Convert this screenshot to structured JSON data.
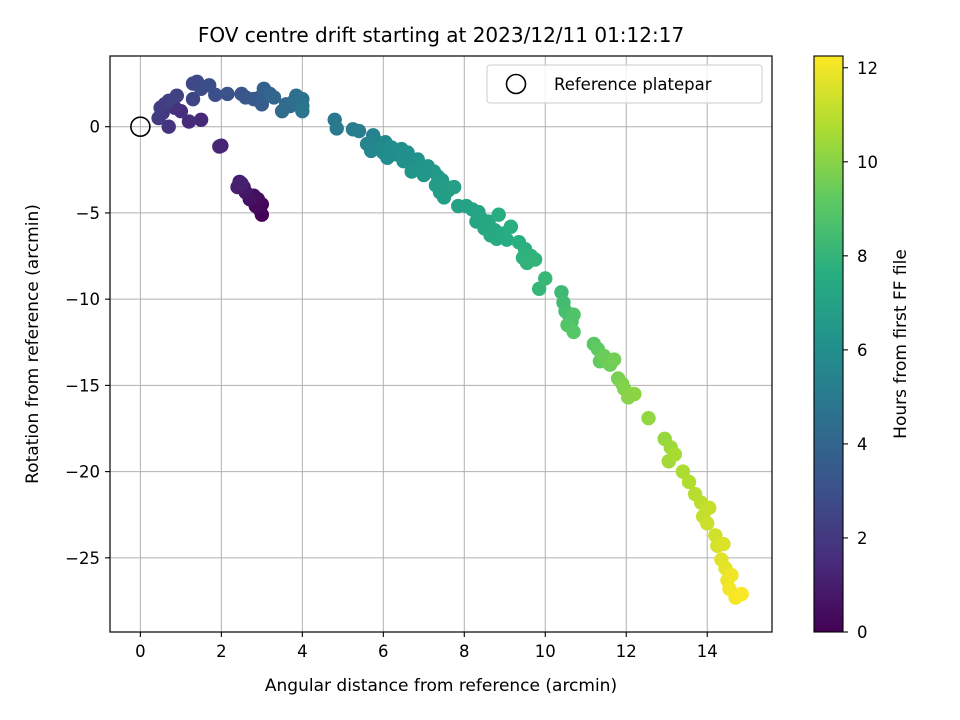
{
  "chart_data": {
    "type": "scatter",
    "title": "FOV centre drift starting at 2023/12/11 01:12:17",
    "xlabel": "Angular distance from reference (arcmin)",
    "ylabel": "Rotation from reference (arcmin)",
    "xlim": [
      -0.75,
      15.6
    ],
    "ylim": [
      -29.3,
      4.1
    ],
    "xticks": [
      0,
      2,
      4,
      6,
      8,
      10,
      12,
      14
    ],
    "yticks": [
      0,
      -5,
      -10,
      -15,
      -20,
      -25
    ],
    "xtick_labels": [
      "0",
      "2",
      "4",
      "6",
      "8",
      "10",
      "12",
      "14"
    ],
    "ytick_labels": [
      "0",
      "−5",
      "−10",
      "−15",
      "−20",
      "−25"
    ],
    "grid": true,
    "colormap": "viridis",
    "colorbar": {
      "label": "Hours from first FF file",
      "range": [
        0,
        12.25
      ],
      "ticks": [
        0,
        2,
        4,
        6,
        8,
        10,
        12
      ],
      "tick_labels": [
        "0",
        "2",
        "4",
        "6",
        "8",
        "10",
        "12"
      ]
    },
    "legend": {
      "position": "top-right",
      "entries": [
        "Reference platepar"
      ]
    },
    "reference_point": {
      "x": 0,
      "y": 0,
      "marker": "open-circle"
    },
    "points": [
      [
        3.0,
        -5.1,
        0.0
      ],
      [
        2.95,
        -4.8,
        0.1
      ],
      [
        3.0,
        -4.5,
        0.2
      ],
      [
        2.85,
        -4.6,
        0.3
      ],
      [
        2.9,
        -4.2,
        0.4
      ],
      [
        2.8,
        -4.0,
        0.5
      ],
      [
        2.7,
        -4.2,
        0.6
      ],
      [
        2.6,
        -3.8,
        0.7
      ],
      [
        2.55,
        -3.5,
        0.8
      ],
      [
        2.45,
        -3.2,
        0.9
      ],
      [
        2.4,
        -3.5,
        1.0
      ],
      [
        2.5,
        -3.3,
        1.1
      ],
      [
        2.0,
        -1.1,
        1.2
      ],
      [
        1.95,
        -1.15,
        1.3
      ],
      [
        1.5,
        0.4,
        1.4
      ],
      [
        1.2,
        0.3,
        1.5
      ],
      [
        1.0,
        0.9,
        1.6
      ],
      [
        0.85,
        1.1,
        1.7
      ],
      [
        0.7,
        0.0,
        1.8
      ],
      [
        0.55,
        0.8,
        1.9
      ],
      [
        0.6,
        1.3,
        2.0
      ],
      [
        0.45,
        0.5,
        2.1
      ],
      [
        0.5,
        1.1,
        2.2
      ],
      [
        0.7,
        1.5,
        2.3
      ],
      [
        0.9,
        1.8,
        2.4
      ],
      [
        1.3,
        1.6,
        2.5
      ],
      [
        1.3,
        2.5,
        2.6
      ],
      [
        1.4,
        2.6,
        2.7
      ],
      [
        1.5,
        2.2,
        2.8
      ],
      [
        1.7,
        2.4,
        2.9
      ],
      [
        1.85,
        1.85,
        3.0
      ],
      [
        2.15,
        1.9,
        3.1
      ],
      [
        2.5,
        1.9,
        3.2
      ],
      [
        2.6,
        1.7,
        3.3
      ],
      [
        2.8,
        1.6,
        3.4
      ],
      [
        2.95,
        1.7,
        3.5
      ],
      [
        3.0,
        1.3,
        3.6
      ],
      [
        3.1,
        1.9,
        3.7
      ],
      [
        3.05,
        2.2,
        3.8
      ],
      [
        3.2,
        1.9,
        3.9
      ],
      [
        3.3,
        1.7,
        4.0
      ],
      [
        3.6,
        1.3,
        4.1
      ],
      [
        3.5,
        0.9,
        4.2
      ],
      [
        3.7,
        1.2,
        4.3
      ],
      [
        3.8,
        1.5,
        4.4
      ],
      [
        3.85,
        1.8,
        4.5
      ],
      [
        4.0,
        1.6,
        4.6
      ],
      [
        4.0,
        1.2,
        4.7
      ],
      [
        4.0,
        0.9,
        4.8
      ],
      [
        4.8,
        0.4,
        4.9
      ],
      [
        4.85,
        -0.1,
        5.0
      ],
      [
        5.25,
        -0.15,
        5.1
      ],
      [
        5.4,
        -0.25,
        5.2
      ],
      [
        5.75,
        -0.5,
        5.3
      ],
      [
        5.8,
        -0.8,
        5.4
      ],
      [
        5.6,
        -1.0,
        5.5
      ],
      [
        5.7,
        -1.4,
        5.6
      ],
      [
        5.95,
        -1.2,
        5.7
      ],
      [
        6.05,
        -0.9,
        5.8
      ],
      [
        6.0,
        -1.5,
        5.85
      ],
      [
        6.1,
        -1.8,
        5.9
      ],
      [
        6.2,
        -1.2,
        5.95
      ],
      [
        6.3,
        -1.6,
        6.0
      ],
      [
        6.45,
        -1.3,
        6.05
      ],
      [
        6.6,
        -1.5,
        6.1
      ],
      [
        6.5,
        -2.0,
        6.15
      ],
      [
        6.7,
        -2.2,
        6.2
      ],
      [
        6.85,
        -1.9,
        6.25
      ],
      [
        6.95,
        -2.4,
        6.3
      ],
      [
        6.7,
        -2.6,
        6.35
      ],
      [
        7.1,
        -2.3,
        6.4
      ],
      [
        7.0,
        -2.8,
        6.45
      ],
      [
        7.25,
        -2.6,
        6.5
      ],
      [
        7.35,
        -2.9,
        6.55
      ],
      [
        7.45,
        -3.1,
        6.6
      ],
      [
        7.3,
        -3.4,
        6.65
      ],
      [
        7.55,
        -3.5,
        6.7
      ],
      [
        7.4,
        -3.8,
        6.75
      ],
      [
        7.5,
        -4.1,
        6.8
      ],
      [
        7.6,
        -3.7,
        6.85
      ],
      [
        7.75,
        -3.5,
        6.9
      ],
      [
        7.85,
        -4.6,
        6.95
      ],
      [
        8.05,
        -4.6,
        7.0
      ],
      [
        8.2,
        -4.8,
        7.05
      ],
      [
        8.35,
        -4.95,
        7.1
      ],
      [
        8.45,
        -5.4,
        7.15
      ],
      [
        8.3,
        -5.5,
        7.2
      ],
      [
        8.5,
        -5.9,
        7.25
      ],
      [
        8.6,
        -5.5,
        7.3
      ],
      [
        8.75,
        -6.0,
        7.35
      ],
      [
        8.65,
        -6.3,
        7.4
      ],
      [
        8.8,
        -6.5,
        7.45
      ],
      [
        8.95,
        -6.2,
        7.5
      ],
      [
        9.05,
        -6.55,
        7.55
      ],
      [
        8.85,
        -5.1,
        7.6
      ],
      [
        9.15,
        -5.8,
        7.65
      ],
      [
        9.35,
        -6.7,
        7.7
      ],
      [
        9.5,
        -7.1,
        7.75
      ],
      [
        9.45,
        -7.6,
        7.8
      ],
      [
        9.65,
        -7.5,
        7.85
      ],
      [
        9.55,
        -7.9,
        7.9
      ],
      [
        9.75,
        -7.7,
        7.95
      ],
      [
        9.85,
        -9.4,
        8.05
      ],
      [
        10.0,
        -8.8,
        8.15
      ],
      [
        10.4,
        -9.6,
        8.3
      ],
      [
        10.45,
        -10.2,
        8.4
      ],
      [
        10.5,
        -10.7,
        8.5
      ],
      [
        10.6,
        -11.0,
        8.6
      ],
      [
        10.65,
        -11.3,
        8.7
      ],
      [
        10.7,
        -10.9,
        8.8
      ],
      [
        10.55,
        -11.5,
        8.9
      ],
      [
        10.7,
        -11.9,
        9.0
      ],
      [
        11.2,
        -12.6,
        9.1
      ],
      [
        11.3,
        -12.9,
        9.2
      ],
      [
        11.35,
        -13.6,
        9.3
      ],
      [
        11.45,
        -13.3,
        9.4
      ],
      [
        11.6,
        -13.8,
        9.5
      ],
      [
        11.7,
        -13.5,
        9.6
      ],
      [
        11.8,
        -14.6,
        9.7
      ],
      [
        11.9,
        -14.9,
        9.8
      ],
      [
        11.95,
        -15.2,
        9.9
      ],
      [
        12.05,
        -15.7,
        10.0
      ],
      [
        12.2,
        -15.5,
        10.1
      ],
      [
        12.55,
        -16.9,
        10.2
      ],
      [
        12.95,
        -18.1,
        10.3
      ],
      [
        13.1,
        -18.6,
        10.4
      ],
      [
        13.05,
        -19.4,
        10.5
      ],
      [
        13.2,
        -19.0,
        10.6
      ],
      [
        13.4,
        -20.0,
        10.7
      ],
      [
        13.55,
        -20.6,
        10.8
      ],
      [
        13.7,
        -21.3,
        10.9
      ],
      [
        13.85,
        -21.8,
        11.0
      ],
      [
        13.9,
        -22.6,
        11.1
      ],
      [
        14.05,
        -22.1,
        11.2
      ],
      [
        14.0,
        -23.0,
        11.3
      ],
      [
        14.2,
        -23.7,
        11.4
      ],
      [
        14.25,
        -24.3,
        11.5
      ],
      [
        14.4,
        -24.2,
        11.6
      ],
      [
        14.35,
        -25.1,
        11.7
      ],
      [
        14.45,
        -25.6,
        11.8
      ],
      [
        14.5,
        -26.3,
        11.9
      ],
      [
        14.6,
        -26.0,
        12.0
      ],
      [
        14.55,
        -26.8,
        12.05
      ],
      [
        14.7,
        -27.3,
        12.1
      ],
      [
        14.85,
        -27.1,
        12.2
      ]
    ]
  }
}
